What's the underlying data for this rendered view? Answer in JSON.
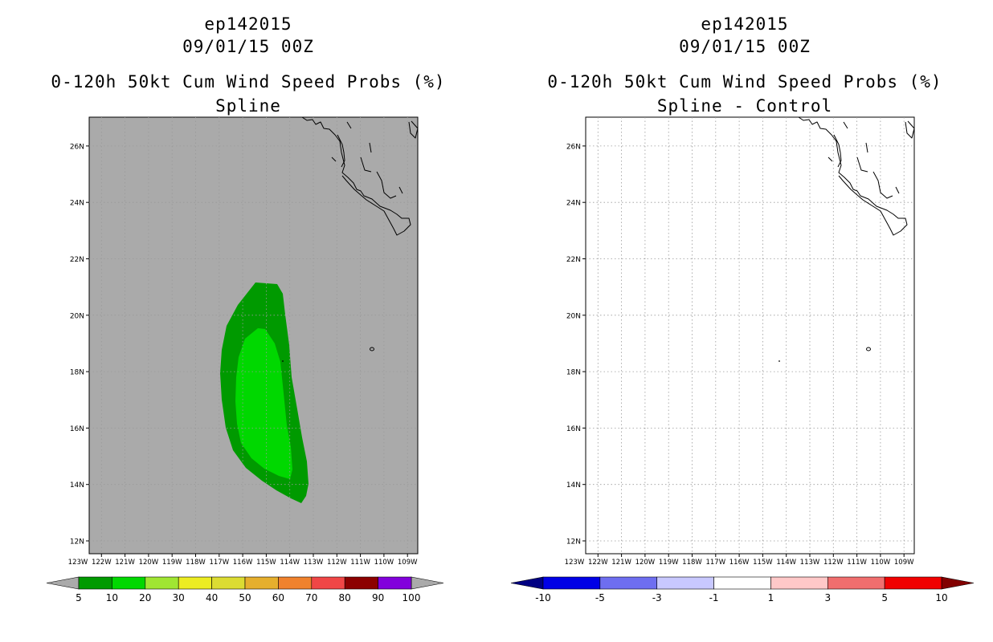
{
  "panels": [
    {
      "id": "left",
      "storm_id": "ep142015",
      "datetime": "09/01/15 00Z",
      "product": "0-120h 50kt Cum Wind Speed Probs (%)",
      "subtitle": "Spline",
      "background_color": "#aaaaaa",
      "lat_labels": [
        "12N",
        "14N",
        "16N",
        "18N",
        "20N",
        "22N",
        "24N",
        "26N"
      ],
      "lon_labels": [
        "123W",
        "122W",
        "121W",
        "120W",
        "119W",
        "118W",
        "117W",
        "116W",
        "115W",
        "114W",
        "113W",
        "112W",
        "111W",
        "110W",
        "109W"
      ],
      "colorbar": {
        "under_color": "#aaaaaa",
        "over_color": "#aaaaaa",
        "colors": [
          "#009a00",
          "#00d800",
          "#a0e632",
          "#ecec22",
          "#dcdc32",
          "#e6af2d",
          "#f0822d",
          "#f04646",
          "#8c0000",
          "#8200dc"
        ],
        "labels": [
          "5",
          "10",
          "20",
          "30",
          "40",
          "50",
          "60",
          "70",
          "80",
          "90",
          "100"
        ]
      }
    },
    {
      "id": "right",
      "storm_id": "ep142015",
      "datetime": "09/01/15 00Z",
      "product": "0-120h 50kt Cum Wind Speed Probs (%)",
      "subtitle": "Spline - Control",
      "background_color": "#ffffff",
      "lat_labels": [
        "12N",
        "14N",
        "16N",
        "18N",
        "20N",
        "22N",
        "24N",
        "26N"
      ],
      "lon_labels": [
        "123W",
        "122W",
        "121W",
        "120W",
        "119W",
        "118W",
        "117W",
        "116W",
        "115W",
        "114W",
        "113W",
        "112W",
        "111W",
        "110W",
        "109W"
      ],
      "colorbar": {
        "under_color": "#000082",
        "over_color": "#820000",
        "colors": [
          "#0000e6",
          "#6e6ef0",
          "#c8c8ff",
          "#ffffff",
          "#ffc8c8",
          "#f06e6e",
          "#f00000"
        ],
        "labels": [
          "-10",
          "-5",
          "-3",
          "-1",
          "1",
          "3",
          "5",
          "10"
        ]
      }
    }
  ],
  "probability_contours": [
    {
      "level": "5-10%",
      "color": "#009a00"
    },
    {
      "level": "10-20%",
      "color": "#00d800"
    }
  ],
  "outline_color": "#000000",
  "grid_color": "#999999"
}
